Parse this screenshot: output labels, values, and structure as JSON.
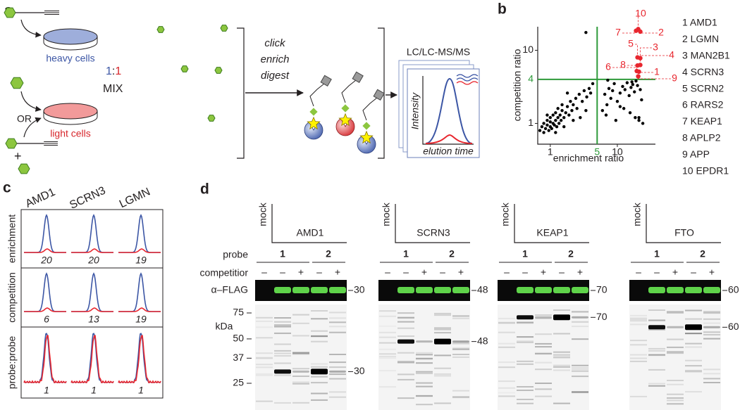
{
  "panel_a": {
    "label": "a",
    "heavy": "heavy cells",
    "light": "light cells",
    "or": "OR",
    "plus": "+",
    "ratio": {
      "left": "1",
      "colon": ":",
      "right": "1"
    },
    "mix": "MIX",
    "steps": [
      "click",
      "enrich",
      "digest"
    ],
    "instrument": "LC/LC-MS/MS",
    "y_axis": "Intensity",
    "x_axis": "elution time"
  },
  "panel_b": {
    "label": "b",
    "type": "scatter",
    "xlabel": "enrichment ratio",
    "ylabel": "competition ratio",
    "log_scale": true,
    "xlim": [
      0.65,
      37
    ],
    "ylim": [
      0.52,
      21
    ],
    "xticks": [
      1,
      10
    ],
    "yticks": [
      1,
      10
    ],
    "threshold": {
      "x": 5,
      "y": 4,
      "color": "#2e9a3a"
    },
    "points": {
      "color": "#000000",
      "x": [
        0.7,
        0.75,
        0.8,
        0.8,
        0.85,
        0.9,
        0.9,
        0.95,
        1,
        1,
        1,
        1.05,
        1.1,
        1.1,
        1.15,
        1.2,
        1.2,
        1.25,
        1.3,
        1.3,
        1.35,
        1.4,
        1.45,
        1.5,
        1.5,
        1.6,
        1.7,
        1.8,
        1.9,
        2,
        2.1,
        2.2,
        2.4,
        2.5,
        2.7,
        3,
        3.2,
        3.5,
        3.8,
        4,
        4.3,
        2.8,
        3.4,
        1.6,
        2.2,
        1.2,
        0.9,
        1.8,
        3.4,
        6,
        6.5,
        7,
        7.5,
        8,
        8.5,
        9,
        10,
        11,
        12,
        13,
        14,
        15,
        16,
        17,
        18,
        19,
        20,
        21,
        22,
        6.8,
        9.5,
        12.5,
        15.5,
        18.5,
        23,
        7.2,
        11,
        16.5,
        21,
        24
      ],
      "y": [
        0.8,
        0.9,
        0.75,
        1,
        0.85,
        0.95,
        1.1,
        0.8,
        0.9,
        1.05,
        1.2,
        0.85,
        1,
        1.3,
        0.95,
        1.1,
        1.4,
        0.9,
        1.2,
        1.6,
        1,
        1.3,
        1.1,
        1.5,
        1.8,
        1.2,
        1.4,
        1.7,
        1.3,
        2,
        1.5,
        1.8,
        2.2,
        1.6,
        2.5,
        2,
        2.8,
        2.3,
        3,
        2.6,
        3.5,
        1.2,
        1.5,
        0.9,
        1.1,
        0.75,
        1.3,
        2.6,
        17.5,
        1.5,
        2.5,
        1.8,
        3,
        2.2,
        2.8,
        3.5,
        2,
        2.6,
        3.2,
        2.9,
        3.6,
        2.4,
        3.1,
        3.4,
        2.7,
        3.8,
        3.3,
        1.2,
        2.9,
        1.3,
        1.1,
        1.6,
        1.4,
        1.2,
        2.1,
        3.9,
        1.7,
        3.7,
        1.1,
        1.0
      ]
    },
    "hits": {
      "color": "#e8262e",
      "labels": [
        "1",
        "2",
        "3",
        "4",
        "5",
        "6",
        "7",
        "8",
        "9",
        "10"
      ],
      "x": [
        21,
        22,
        22,
        22,
        20,
        19.5,
        19,
        20,
        20.5,
        20.5
      ],
      "y": [
        5.1,
        18,
        7.8,
        6.3,
        8,
        5.2,
        18.5,
        6.2,
        4.4,
        19.5
      ]
    },
    "legend": [
      "1 AMD1",
      "2 LGMN",
      "3 MAN2B1",
      "4 SCRN3",
      "5 SCRN2",
      "6 RARS2",
      "7 KEAP1",
      "8 APLP2",
      "9 APP",
      "10 EPDR1"
    ]
  },
  "panel_c": {
    "label": "c",
    "columns": [
      "AMD1",
      "SCRN3",
      "LGMN"
    ],
    "rows": [
      {
        "name": "enrichment",
        "ratios": [
          20,
          20,
          19
        ]
      },
      {
        "name": "competition",
        "ratios": [
          6,
          13,
          19
        ]
      },
      {
        "name": "probe:probe",
        "ratios": [
          1,
          1,
          1
        ]
      }
    ]
  },
  "panel_d": {
    "label": "d",
    "mock": "mock",
    "probe_label": "probe",
    "competition_label": "competitior",
    "probes": [
      "1",
      "2"
    ],
    "competition_signs": [
      "–",
      "–",
      "+",
      "–",
      "+"
    ],
    "flag_label": "α–FLAG",
    "kda_label": "kDa",
    "ladder": [
      75,
      50,
      37,
      25
    ],
    "gels": [
      {
        "protein": "AMD1",
        "kda": 30
      },
      {
        "protein": "SCRN3",
        "kda": 48
      },
      {
        "protein": "KEAP1",
        "kda": 70
      },
      {
        "protein": "FTO",
        "kda": 60
      }
    ]
  }
}
